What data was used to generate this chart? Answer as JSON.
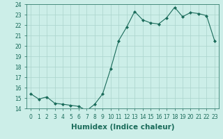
{
  "xlabel": "Humidex (Indice chaleur)",
  "ylabel": "",
  "x": [
    0,
    1,
    2,
    3,
    4,
    5,
    6,
    7,
    8,
    9,
    10,
    11,
    12,
    13,
    14,
    15,
    16,
    17,
    18,
    19,
    20,
    21,
    22,
    23
  ],
  "y": [
    15.4,
    14.9,
    15.1,
    14.5,
    14.4,
    14.3,
    14.2,
    13.8,
    14.4,
    15.4,
    17.8,
    20.5,
    21.8,
    23.3,
    22.5,
    22.2,
    22.1,
    22.7,
    23.7,
    22.8,
    23.2,
    23.1,
    22.9,
    20.5
  ],
  "line_color": "#1a6b5a",
  "marker": "D",
  "marker_size": 2.0,
  "bg_color": "#cceee8",
  "grid_color": "#aad4cc",
  "ylim": [
    14,
    24
  ],
  "xlim": [
    -0.5,
    23.5
  ],
  "yticks": [
    14,
    15,
    16,
    17,
    18,
    19,
    20,
    21,
    22,
    23,
    24
  ],
  "xticks": [
    0,
    1,
    2,
    3,
    4,
    5,
    6,
    7,
    8,
    9,
    10,
    11,
    12,
    13,
    14,
    15,
    16,
    17,
    18,
    19,
    20,
    21,
    22,
    23
  ],
  "tick_fontsize": 5.5,
  "xlabel_fontsize": 7.5,
  "tick_color": "#1a6b5a",
  "label_color": "#1a6b5a"
}
